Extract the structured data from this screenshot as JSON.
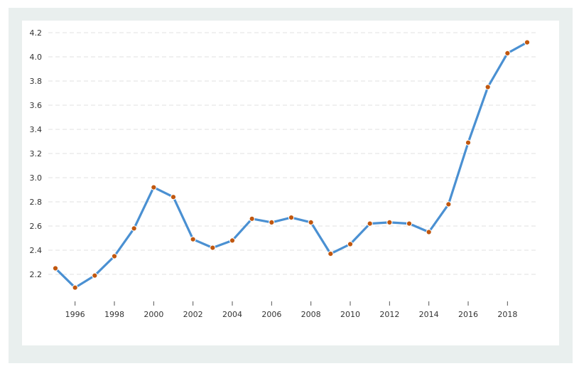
{
  "colors": {
    "frame_bg": "#e9efee",
    "card_bg": "#ffffff",
    "line": "#4a90d2",
    "marker": "#c0570f",
    "grid": "#e2e2e2"
  },
  "chart_data": {
    "type": "line",
    "title": "",
    "xlabel": "",
    "ylabel": "",
    "xlim": [
      1995,
      2019
    ],
    "ylim": [
      2.0,
      4.3
    ],
    "x_ticks": [
      "1996",
      "1998",
      "2000",
      "2002",
      "2004",
      "2006",
      "2008",
      "2010",
      "2012",
      "2014",
      "2016",
      "2018"
    ],
    "y_ticks": [
      "2.2",
      "2.4",
      "2.6",
      "2.8",
      "3.0",
      "3.2",
      "3.4",
      "3.6",
      "3.8",
      "4.0",
      "4.2"
    ],
    "grid": "horizontal dashed",
    "legend": "none",
    "series": [
      {
        "x": [
          1995,
          1996,
          1997,
          1998,
          1999,
          2000,
          2001,
          2002,
          2003,
          2004,
          2005,
          2006,
          2007,
          2008,
          2009,
          2010,
          2011,
          2012,
          2013,
          2014,
          2015,
          2016,
          2017,
          2018,
          2019
        ],
        "y": [
          2.25,
          2.09,
          2.19,
          2.35,
          2.58,
          2.92,
          2.84,
          2.49,
          2.42,
          2.48,
          2.66,
          2.63,
          2.67,
          2.63,
          2.37,
          2.45,
          2.62,
          2.63,
          2.62,
          2.55,
          2.78,
          3.29,
          3.75,
          4.03,
          4.12
        ]
      }
    ]
  }
}
